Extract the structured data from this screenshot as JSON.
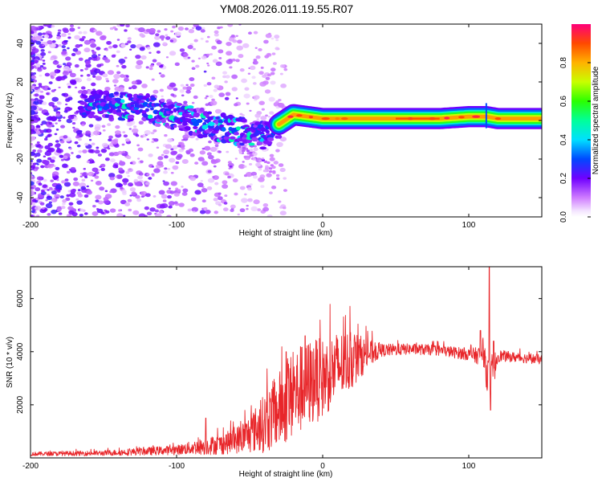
{
  "title": "YM08.2026.011.19.55.R07",
  "chart_data": [
    {
      "type": "heatmap",
      "name": "spectrogram",
      "xlabel": "Height of straight line (km)",
      "ylabel": "Frequency (Hz)",
      "xlim": [
        -200,
        150
      ],
      "ylim": [
        -50,
        50
      ],
      "xticks": [
        -200,
        -100,
        0,
        100
      ],
      "yticks": [
        -40,
        -20,
        0,
        20,
        40
      ],
      "xtick_labels": [
        "-200",
        "-100",
        "0",
        "100"
      ],
      "ytick_labels": [
        "-40",
        "-20",
        "0",
        "20",
        "40"
      ],
      "colorbar": {
        "label": "Normalized spectral amplitude",
        "range": [
          0,
          1
        ],
        "ticks": [
          0.0,
          0.2,
          0.4,
          0.6,
          0.8
        ],
        "tick_labels": [
          "0.0",
          "0.2",
          "0.4",
          "0.6",
          "0.8"
        ]
      },
      "ridge": {
        "points": [
          [
            -150,
            8
          ],
          [
            -120,
            6
          ],
          [
            -100,
            2
          ],
          [
            -80,
            -2
          ],
          [
            -60,
            -5
          ],
          [
            -40,
            -8
          ],
          [
            -30,
            -2
          ],
          [
            -20,
            3
          ],
          [
            -10,
            2
          ],
          [
            0,
            1
          ],
          [
            20,
            1
          ],
          [
            60,
            1
          ],
          [
            80,
            1
          ],
          [
            100,
            2
          ],
          [
            112,
            2
          ],
          [
            120,
            1
          ],
          [
            150,
            1
          ]
        ]
      }
    },
    {
      "type": "line",
      "name": "snr",
      "xlabel": "Height of straight line (km)",
      "ylabel": "SNR (10 * v/v)",
      "xlim": [
        -200,
        150
      ],
      "ylim": [
        0,
        7200
      ],
      "xticks": [
        -200,
        -100,
        0,
        100
      ],
      "yticks": [
        2000,
        4000,
        6000
      ],
      "xtick_labels": [
        "-200",
        "-100",
        "0",
        "100"
      ],
      "ytick_labels": [
        "2000",
        "4000",
        "6000"
      ],
      "color": "#e8262a",
      "envelope": {
        "x": [
          -200,
          -150,
          -120,
          -100,
          -80,
          -70,
          -60,
          -50,
          -40,
          -30,
          -20,
          -10,
          0,
          10,
          20,
          30,
          40,
          60,
          80,
          100,
          105,
          110,
          112,
          115,
          118,
          120,
          130,
          150
        ],
        "y": [
          150,
          180,
          250,
          300,
          450,
          500,
          650,
          900,
          1300,
          1800,
          2400,
          2800,
          3000,
          3400,
          3700,
          3900,
          4050,
          4100,
          4050,
          3900,
          3850,
          3900,
          3300,
          2900,
          3500,
          3850,
          3800,
          3700
        ]
      },
      "noise_fraction": [
        0.5,
        0.55,
        0.6,
        0.6,
        0.75,
        0.75,
        0.75,
        0.8,
        0.85,
        0.8,
        0.7,
        0.6,
        0.5,
        0.4,
        0.3,
        0.15,
        0.06,
        0.05,
        0.05,
        0.06,
        0.08,
        0.1,
        0.2,
        0.25,
        0.15,
        0.06,
        0.05,
        0.05
      ],
      "spikes": [
        {
          "x": -116,
          "y": 460
        },
        {
          "x": -80,
          "y": 1500
        },
        {
          "x": -25,
          "y": 4000
        },
        {
          "x": -12,
          "y": 4600
        },
        {
          "x": -5,
          "y": 3700
        },
        {
          "x": 108,
          "y": 4800
        },
        {
          "x": 114,
          "y": 7200
        },
        {
          "x": 115,
          "y": 1800
        },
        {
          "x": 117,
          "y": 4400
        }
      ]
    }
  ]
}
